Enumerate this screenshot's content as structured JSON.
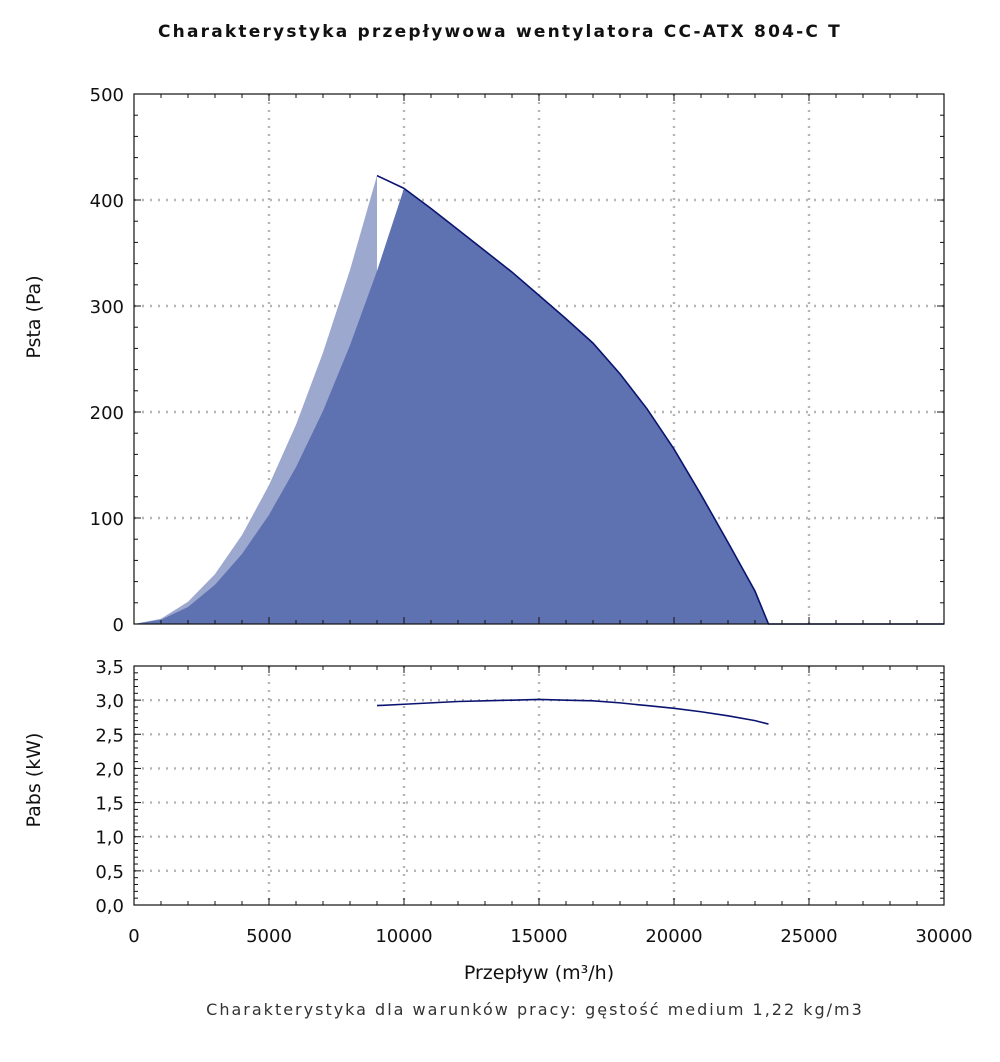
{
  "chart_data": [
    {
      "type": "area",
      "title": "Charakterystyka przepływowa wentylatora CC-ATX 804-C T",
      "ylabel": "Psta (Pa)",
      "xlim": [
        0,
        30000
      ],
      "ylim": [
        0,
        500
      ],
      "yticks": [
        "0",
        "100",
        "200",
        "300",
        "400",
        "500"
      ],
      "grid": true,
      "colors": {
        "light": "#9da8cf",
        "main": "#5e71b0",
        "line": "#0a1470"
      },
      "series": [
        {
          "x": [
            0,
            1000,
            2000,
            3000,
            4000,
            5000,
            6000,
            7000,
            8000,
            9000
          ],
          "y": [
            0,
            5,
            21,
            47,
            84,
            131,
            188,
            256,
            334,
            423
          ]
        },
        {
          "x": [
            0,
            1000,
            2000,
            3000,
            4000,
            5000,
            6000,
            7000,
            8000,
            9000,
            10000,
            11000,
            12000,
            13000,
            14000,
            15000,
            16000,
            17000,
            18000,
            19000,
            20000,
            21000,
            22000,
            23000,
            23500,
            24000,
            30000
          ],
          "y": [
            0,
            4,
            16,
            37,
            66,
            103,
            148,
            201,
            263,
            333,
            411,
            392,
            372,
            352,
            332,
            310,
            288,
            265,
            236,
            203,
            165,
            122,
            77,
            31,
            0,
            0,
            0
          ]
        }
      ]
    },
    {
      "type": "line",
      "ylabel": "Pabs (kW)",
      "xlabel": "Przepływ (m³/h)",
      "xlim": [
        0,
        30000
      ],
      "ylim": [
        0,
        3.5
      ],
      "xticks": [
        "0",
        "5000",
        "10000",
        "15000",
        "20000",
        "25000",
        "30000"
      ],
      "yticks": [
        "0,0",
        "0,5",
        "1,0",
        "1,5",
        "2,0",
        "2,5",
        "3,0",
        "3,5"
      ],
      "grid": true,
      "series": [
        {
          "x": [
            9000,
            10000,
            11000,
            12000,
            13000,
            14000,
            15000,
            16000,
            17000,
            18000,
            19000,
            20000,
            21000,
            22000,
            23000,
            23500
          ],
          "y": [
            2.92,
            2.94,
            2.96,
            2.98,
            2.99,
            3.0,
            3.01,
            3.0,
            2.99,
            2.96,
            2.92,
            2.88,
            2.83,
            2.77,
            2.7,
            2.65
          ]
        }
      ]
    }
  ],
  "footnote": "Charakterystyka dla warunków pracy: gęstość medium 1,22 kg/m3"
}
